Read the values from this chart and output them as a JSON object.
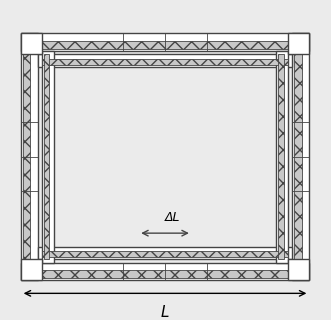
{
  "fig_width": 3.31,
  "fig_height": 3.2,
  "dpi": 100,
  "bg_color": "#ebebeb",
  "fc": "#444444",
  "hatch_fc": "#c8c8c8",
  "white": "#ffffff",
  "lw": 1.0,
  "L_label": "L",
  "DL_label": "ΔL"
}
